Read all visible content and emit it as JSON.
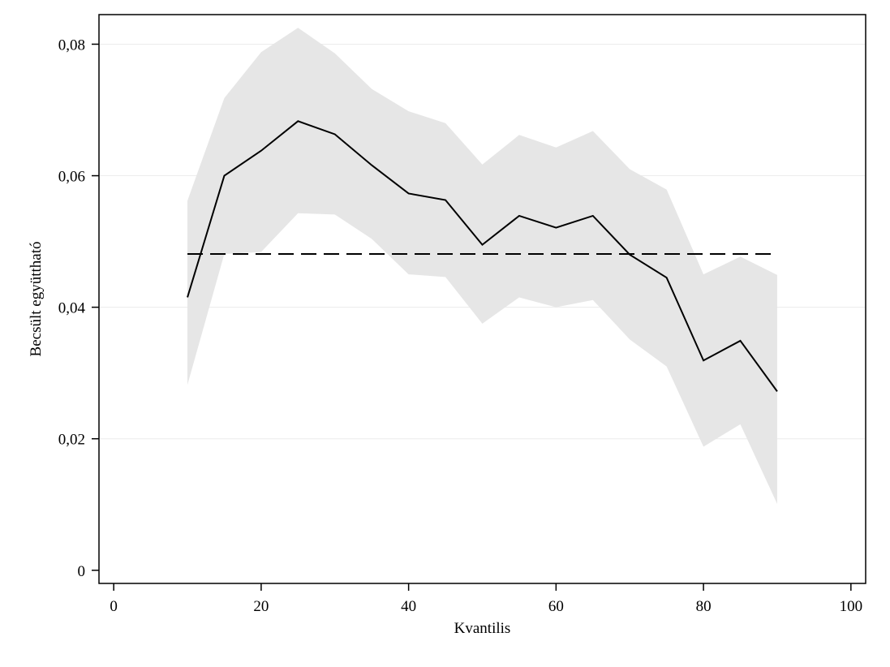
{
  "chart_data": {
    "type": "line",
    "title": "",
    "xlabel": "Kvantilis",
    "ylabel": "Becsült együttható",
    "xlim": [
      -2,
      102
    ],
    "ylim": [
      -0.002,
      0.0845
    ],
    "x_ticks": [
      0,
      20,
      40,
      60,
      80,
      100
    ],
    "x_tick_labels": [
      "0",
      "20",
      "40",
      "60",
      "80",
      "100"
    ],
    "y_ticks": [
      0,
      0.02,
      0.04,
      0.06,
      0.08
    ],
    "y_tick_labels": [
      "0",
      "0,02",
      "0,04",
      "0,06",
      "0,08"
    ],
    "grid": {
      "horizontal": true,
      "vertical": false
    },
    "legend": "none",
    "colors": {
      "line": "#000000",
      "band": "#e6e6e6",
      "grid": "#ececec",
      "reference": "#000000"
    },
    "x": [
      10,
      15,
      20,
      25,
      30,
      35,
      40,
      45,
      50,
      55,
      60,
      65,
      70,
      75,
      80,
      85,
      90
    ],
    "series": [
      {
        "values": [
          0.0415,
          0.06,
          0.0638,
          0.0683,
          0.0663,
          0.0616,
          0.0573,
          0.0563,
          0.0495,
          0.0539,
          0.0521,
          0.0539,
          0.048,
          0.0445,
          0.0319,
          0.0349,
          0.0272
        ],
        "style": "solid"
      }
    ],
    "confidence_band": {
      "lower": [
        0.0282,
        0.0481,
        0.0484,
        0.0543,
        0.0541,
        0.0504,
        0.045,
        0.0446,
        0.0375,
        0.0415,
        0.04,
        0.0411,
        0.0351,
        0.031,
        0.0188,
        0.0222,
        0.0101
      ],
      "upper": [
        0.0562,
        0.0718,
        0.0788,
        0.0825,
        0.0786,
        0.0732,
        0.0698,
        0.068,
        0.0617,
        0.0662,
        0.0643,
        0.0668,
        0.061,
        0.0579,
        0.045,
        0.0477,
        0.0449
      ]
    },
    "reference_line": {
      "y": 0.0481,
      "x_range": [
        10,
        90
      ],
      "style": "dashed"
    }
  }
}
